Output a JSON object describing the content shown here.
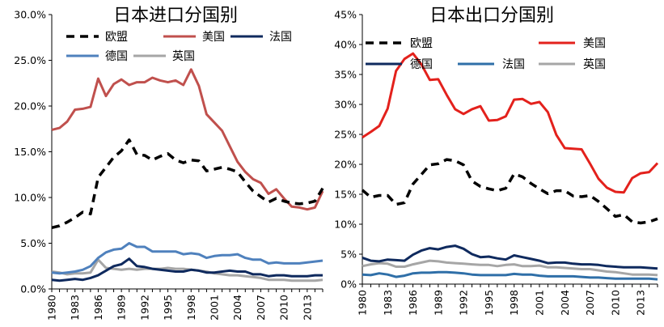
{
  "chart_data": [
    {
      "type": "line",
      "title": "日本进口分国别",
      "xlabel": "",
      "ylabel": "",
      "x": [
        1980,
        1981,
        1982,
        1983,
        1984,
        1985,
        1986,
        1987,
        1988,
        1989,
        1990,
        1991,
        1992,
        1993,
        1994,
        1995,
        1996,
        1997,
        1998,
        1999,
        2000,
        2001,
        2002,
        2003,
        2004,
        2005,
        2006,
        2007,
        2008,
        2009,
        2010,
        2011,
        2012,
        2013,
        2014,
        2015
      ],
      "xticks": [
        "1980",
        "1983",
        "1986",
        "1989",
        "1992",
        "1995",
        "1998",
        "2001",
        "2004",
        "2007",
        "2010",
        "2013"
      ],
      "ylim": [
        0,
        30
      ],
      "yticks": [
        "0.0%",
        "5.0%",
        "10.0%",
        "15.0%",
        "20.0%",
        "25.0%",
        "30.0%"
      ],
      "grid": false,
      "legend": "top",
      "series": [
        {
          "name": "欧盟",
          "color": "#000000",
          "style": "dash",
          "values": [
            6.7,
            6.9,
            7.3,
            7.8,
            8.4,
            8.2,
            12.2,
            13.3,
            14.4,
            15.1,
            16.3,
            14.7,
            14.6,
            14.1,
            14.5,
            14.8,
            14.1,
            13.8,
            14.1,
            14.0,
            12.9,
            13.1,
            13.3,
            13.1,
            12.8,
            11.7,
            10.7,
            10.1,
            9.5,
            9.9,
            9.6,
            9.4,
            9.3,
            9.4,
            9.6,
            11.0
          ]
        },
        {
          "name": "美国",
          "color": "#c0504d",
          "style": "solid",
          "values": [
            17.4,
            17.6,
            18.3,
            19.6,
            19.7,
            19.9,
            23.0,
            21.1,
            22.4,
            22.9,
            22.3,
            22.6,
            22.6,
            23.1,
            22.8,
            22.6,
            22.8,
            22.3,
            24.0,
            22.2,
            19.1,
            18.2,
            17.3,
            15.6,
            13.9,
            12.8,
            12.0,
            11.6,
            10.4,
            10.9,
            9.9,
            9.0,
            8.9,
            8.7,
            8.9,
            10.7
          ]
        },
        {
          "name": "法国",
          "color": "#0f2a5e",
          "style": "solid",
          "values": [
            1.0,
            0.9,
            1.0,
            1.1,
            1.0,
            1.2,
            1.5,
            2.0,
            2.5,
            2.7,
            3.3,
            2.5,
            2.4,
            2.2,
            2.1,
            2.0,
            1.9,
            1.9,
            2.1,
            2.0,
            1.8,
            1.8,
            1.9,
            2.0,
            1.9,
            1.9,
            1.6,
            1.6,
            1.4,
            1.5,
            1.5,
            1.4,
            1.4,
            1.4,
            1.5,
            1.5
          ]
        },
        {
          "name": "德国",
          "color": "#4f81bd",
          "style": "solid",
          "values": [
            1.8,
            1.7,
            1.8,
            1.9,
            2.1,
            2.5,
            3.4,
            4.0,
            4.3,
            4.4,
            5.0,
            4.6,
            4.6,
            4.1,
            4.1,
            4.1,
            4.1,
            3.8,
            3.9,
            3.8,
            3.4,
            3.6,
            3.7,
            3.7,
            3.8,
            3.4,
            3.2,
            3.2,
            2.8,
            2.9,
            2.8,
            2.8,
            2.8,
            2.9,
            3.0,
            3.1
          ]
        },
        {
          "name": "英国",
          "color": "#a6a6a6",
          "style": "solid",
          "values": [
            1.9,
            1.8,
            1.6,
            1.7,
            1.7,
            1.8,
            3.2,
            2.3,
            2.2,
            2.1,
            2.2,
            2.1,
            2.2,
            2.2,
            2.2,
            2.3,
            2.2,
            2.2,
            2.1,
            2.0,
            1.9,
            1.7,
            1.6,
            1.5,
            1.5,
            1.4,
            1.3,
            1.2,
            1.0,
            1.0,
            1.0,
            0.9,
            0.9,
            0.9,
            0.9,
            1.0
          ]
        }
      ]
    },
    {
      "type": "line",
      "title": "日本出口分国别",
      "xlabel": "",
      "ylabel": "",
      "x": [
        1980,
        1981,
        1982,
        1983,
        1984,
        1985,
        1986,
        1987,
        1988,
        1989,
        1990,
        1991,
        1992,
        1993,
        1994,
        1995,
        1996,
        1997,
        1998,
        1999,
        2000,
        2001,
        2002,
        2003,
        2004,
        2005,
        2006,
        2007,
        2008,
        2009,
        2010,
        2011,
        2012,
        2013,
        2014,
        2015
      ],
      "xticks": [
        "1980",
        "1983",
        "1986",
        "1989",
        "1992",
        "1995",
        "1998",
        "2001",
        "2004",
        "2007",
        "2010",
        "2013"
      ],
      "ylim": [
        0,
        45
      ],
      "yticks": [
        "0%",
        "5%",
        "10%",
        "15%",
        "20%",
        "25%",
        "30%",
        "35%",
        "40%",
        "45%"
      ],
      "grid": false,
      "legend": "top",
      "series": [
        {
          "name": "欧盟",
          "color": "#000000",
          "style": "dash",
          "values": [
            15.7,
            14.5,
            14.8,
            14.8,
            13.3,
            13.6,
            16.7,
            18.3,
            19.9,
            20.1,
            20.8,
            20.6,
            19.9,
            17.2,
            16.3,
            15.9,
            15.6,
            16.0,
            18.4,
            17.9,
            16.8,
            15.9,
            15.1,
            15.6,
            15.6,
            14.7,
            14.6,
            14.8,
            13.8,
            12.6,
            11.3,
            11.6,
            10.4,
            10.2,
            10.4,
            10.9
          ]
        },
        {
          "name": "美国",
          "color": "#e3211c",
          "style": "solid",
          "values": [
            24.5,
            25.4,
            26.4,
            29.3,
            35.6,
            37.6,
            38.5,
            36.7,
            34.1,
            34.2,
            31.6,
            29.2,
            28.4,
            29.2,
            29.7,
            27.3,
            27.4,
            28.0,
            30.8,
            30.9,
            30.1,
            30.4,
            28.7,
            24.9,
            22.7,
            22.6,
            22.5,
            20.1,
            17.6,
            16.1,
            15.4,
            15.3,
            17.7,
            18.5,
            18.7,
            20.2
          ]
        },
        {
          "name": "法国",
          "color": "#2f6fa8",
          "style": "solid",
          "values": [
            1.6,
            1.5,
            1.8,
            1.6,
            1.2,
            1.4,
            1.8,
            1.9,
            1.9,
            2.0,
            2.0,
            1.9,
            1.8,
            1.6,
            1.5,
            1.5,
            1.5,
            1.5,
            1.7,
            1.6,
            1.6,
            1.4,
            1.3,
            1.3,
            1.3,
            1.3,
            1.2,
            1.1,
            1.1,
            1.0,
            0.9,
            0.9,
            0.9,
            0.9,
            0.9,
            0.8
          ]
        },
        {
          "name": "德国",
          "color": "#0f2a5e",
          "style": "solid",
          "values": [
            4.4,
            3.9,
            3.8,
            4.1,
            4.0,
            3.9,
            4.9,
            5.6,
            6.0,
            5.8,
            6.2,
            6.4,
            5.9,
            5.0,
            4.5,
            4.6,
            4.3,
            4.1,
            4.8,
            4.5,
            4.2,
            3.9,
            3.5,
            3.6,
            3.6,
            3.4,
            3.3,
            3.3,
            3.2,
            3.0,
            2.9,
            2.8,
            2.8,
            2.8,
            2.7,
            2.6
          ]
        },
        {
          "name": "英国",
          "color": "#a6a6a6",
          "style": "solid",
          "values": [
            3.0,
            3.3,
            3.5,
            3.4,
            2.9,
            2.9,
            3.3,
            3.6,
            3.9,
            3.8,
            3.6,
            3.5,
            3.4,
            3.3,
            3.2,
            3.2,
            3.0,
            3.2,
            3.3,
            3.0,
            3.0,
            3.1,
            2.8,
            2.8,
            2.7,
            2.6,
            2.5,
            2.5,
            2.3,
            2.1,
            2.0,
            1.8,
            1.6,
            1.6,
            1.6,
            1.5
          ]
        }
      ]
    }
  ]
}
